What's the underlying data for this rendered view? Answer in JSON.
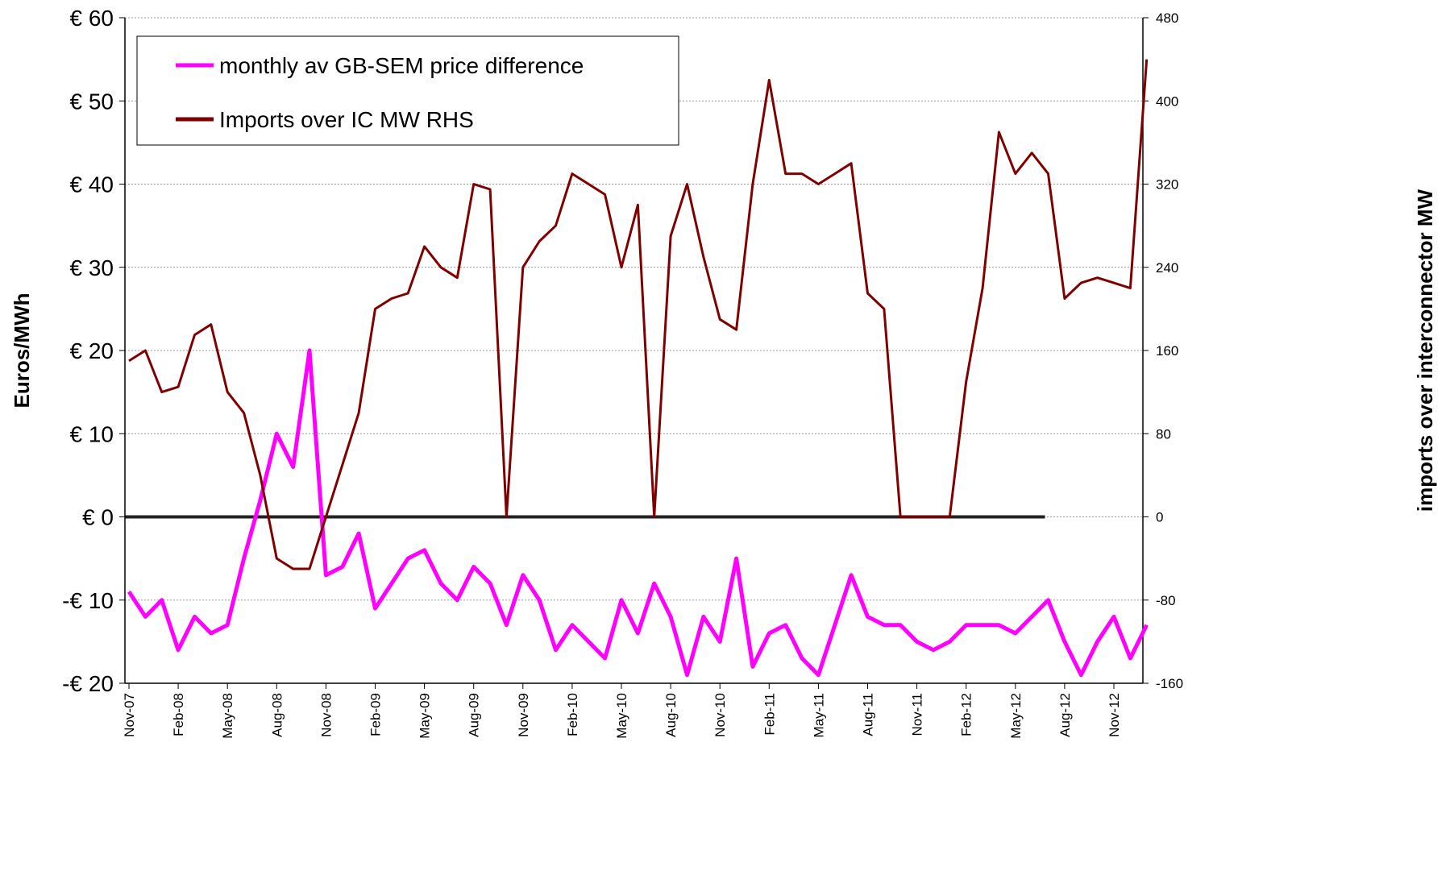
{
  "chart_data": {
    "type": "line",
    "y_label": "Euros/MWh",
    "y2_label": "imports over interconnector MW",
    "categories": [
      "Nov-07",
      null,
      null,
      "Feb-08",
      null,
      null,
      "May-08",
      null,
      null,
      "Aug-08",
      null,
      null,
      "Nov-08",
      null,
      null,
      "Feb-09",
      null,
      null,
      "May-09",
      null,
      null,
      "Aug-09",
      null,
      null,
      "Nov-09",
      null,
      null,
      "Feb-10",
      null,
      null,
      "May-10",
      null,
      null,
      "Aug-10",
      null,
      null,
      "Nov-10",
      null,
      null,
      "Feb-11",
      null,
      null,
      "May-11",
      null,
      null,
      "Aug-11",
      null,
      null,
      "Nov-11",
      null,
      null,
      "Feb-12",
      null,
      null,
      "May-12",
      null,
      null,
      "Aug-12",
      null,
      null,
      "Nov-12",
      null,
      null
    ],
    "series": [
      {
        "name": "monthly av GB-SEM price difference",
        "color": "#ff00ff",
        "axis": "y",
        "values": [
          -9,
          -12,
          -10,
          -16,
          -12,
          -14,
          -13,
          -5,
          2,
          10,
          6,
          20,
          -7,
          -6,
          -2,
          -11,
          -8,
          -5,
          -4,
          -8,
          -10,
          -6,
          -8,
          -13,
          -7,
          -10,
          -16,
          -13,
          -15,
          -17,
          -10,
          -14,
          -8,
          -12,
          -19,
          -12,
          -15,
          -5,
          -18,
          -14,
          -13,
          -17,
          -19,
          -13,
          -7,
          -12,
          -13,
          -13,
          -15,
          -16,
          -15,
          -13,
          -13,
          -13,
          -14,
          -12,
          -10,
          -15,
          -19,
          -15,
          -12,
          -17,
          -13
        ]
      },
      {
        "name": "Imports over IC MW RHS",
        "color": "#800000",
        "axis": "y2",
        "values": [
          150,
          160,
          120,
          125,
          175,
          185,
          120,
          100,
          40,
          -40,
          -50,
          -50,
          0,
          50,
          100,
          200,
          210,
          215,
          260,
          240,
          230,
          320,
          315,
          0,
          240,
          265,
          280,
          330,
          320,
          310,
          240,
          300,
          0,
          270,
          320,
          250,
          190,
          180,
          320,
          420,
          330,
          330,
          320,
          330,
          340,
          215,
          200,
          0,
          0,
          0,
          0,
          130,
          220,
          370,
          330,
          350,
          330,
          210,
          225,
          230,
          225,
          220,
          440
        ]
      }
    ],
    "ylim": [
      -20,
      60
    ],
    "yticks": [
      {
        "value": -20,
        "label": "-€ 20"
      },
      {
        "value": -10,
        "label": "-€ 10"
      },
      {
        "value": 0,
        "label": "€ 0"
      },
      {
        "value": 10,
        "label": "€ 10"
      },
      {
        "value": 20,
        "label": "€ 20"
      },
      {
        "value": 30,
        "label": "€ 30"
      },
      {
        "value": 40,
        "label": "€ 40"
      },
      {
        "value": 50,
        "label": "€ 50"
      },
      {
        "value": 60,
        "label": "€ 60"
      }
    ],
    "y2lim": [
      -160,
      480
    ],
    "y2ticks": [
      -160,
      -80,
      0,
      80,
      160,
      240,
      320,
      400,
      480
    ],
    "grid": true,
    "legend": "upper left"
  }
}
